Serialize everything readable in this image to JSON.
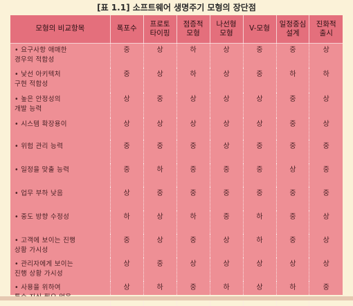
{
  "caption": "[표 1.1]   소프트웨어 생명주기 모형의 장단점",
  "headers": [
    "모형의 비교항목",
    "폭포수",
    "프로토\n타이핑",
    "점증적\n모형",
    "나선형\n모형",
    "V-모형",
    "일정중심\n설계",
    "진화적\n출시"
  ],
  "rows": [
    {
      "item": "• 요구사항 애매한\n  경우의 적합성",
      "cells": [
        "중",
        "상",
        "하",
        "상",
        "중",
        "중",
        "상"
      ]
    },
    {
      "item": "• 낯선 아키텍처\n  구현 적합성",
      "cells": [
        "중",
        "상",
        "하",
        "상",
        "중",
        "하",
        "하"
      ]
    },
    {
      "item": "• 높은 안정성의\n  개발 능력",
      "cells": [
        "상",
        "중",
        "상",
        "상",
        "상",
        "중",
        "상"
      ]
    },
    {
      "item": "• 시스템 확장용이",
      "cells": [
        "상",
        "상",
        "상",
        "상",
        "상",
        "중",
        "상"
      ]
    },
    {
      "item": "• 위험 관리 능력",
      "cells": [
        "중",
        "중",
        "중",
        "상",
        "중",
        "중",
        "중"
      ]
    },
    {
      "item": "• 일정을 맞출 능력",
      "cells": [
        "중",
        "하",
        "중",
        "중",
        "중",
        "상",
        "중"
      ]
    },
    {
      "item": "• 업무 부하 낮음",
      "cells": [
        "상",
        "중",
        "중",
        "중",
        "중",
        "중",
        "중"
      ]
    },
    {
      "item": "• 중도 방향 수정성",
      "cells": [
        "하",
        "상",
        "하",
        "중",
        "하",
        "중",
        "상"
      ]
    },
    {
      "item": "• 고객에 보이는 진행\n  상황 가시성",
      "cells": [
        "중",
        "상",
        "중",
        "상",
        "하",
        "중",
        "상"
      ]
    },
    {
      "item": "• 관리자에게 보이는\n  진행 상황 가시성",
      "cells": [
        "상",
        "중",
        "상",
        "상",
        "상",
        "상",
        "상"
      ]
    },
    {
      "item": "• 사용을 위하여\n  특수 지식 필요 없음",
      "cells": [
        "상",
        "하",
        "중",
        "하",
        "상",
        "하",
        "중"
      ]
    }
  ]
}
